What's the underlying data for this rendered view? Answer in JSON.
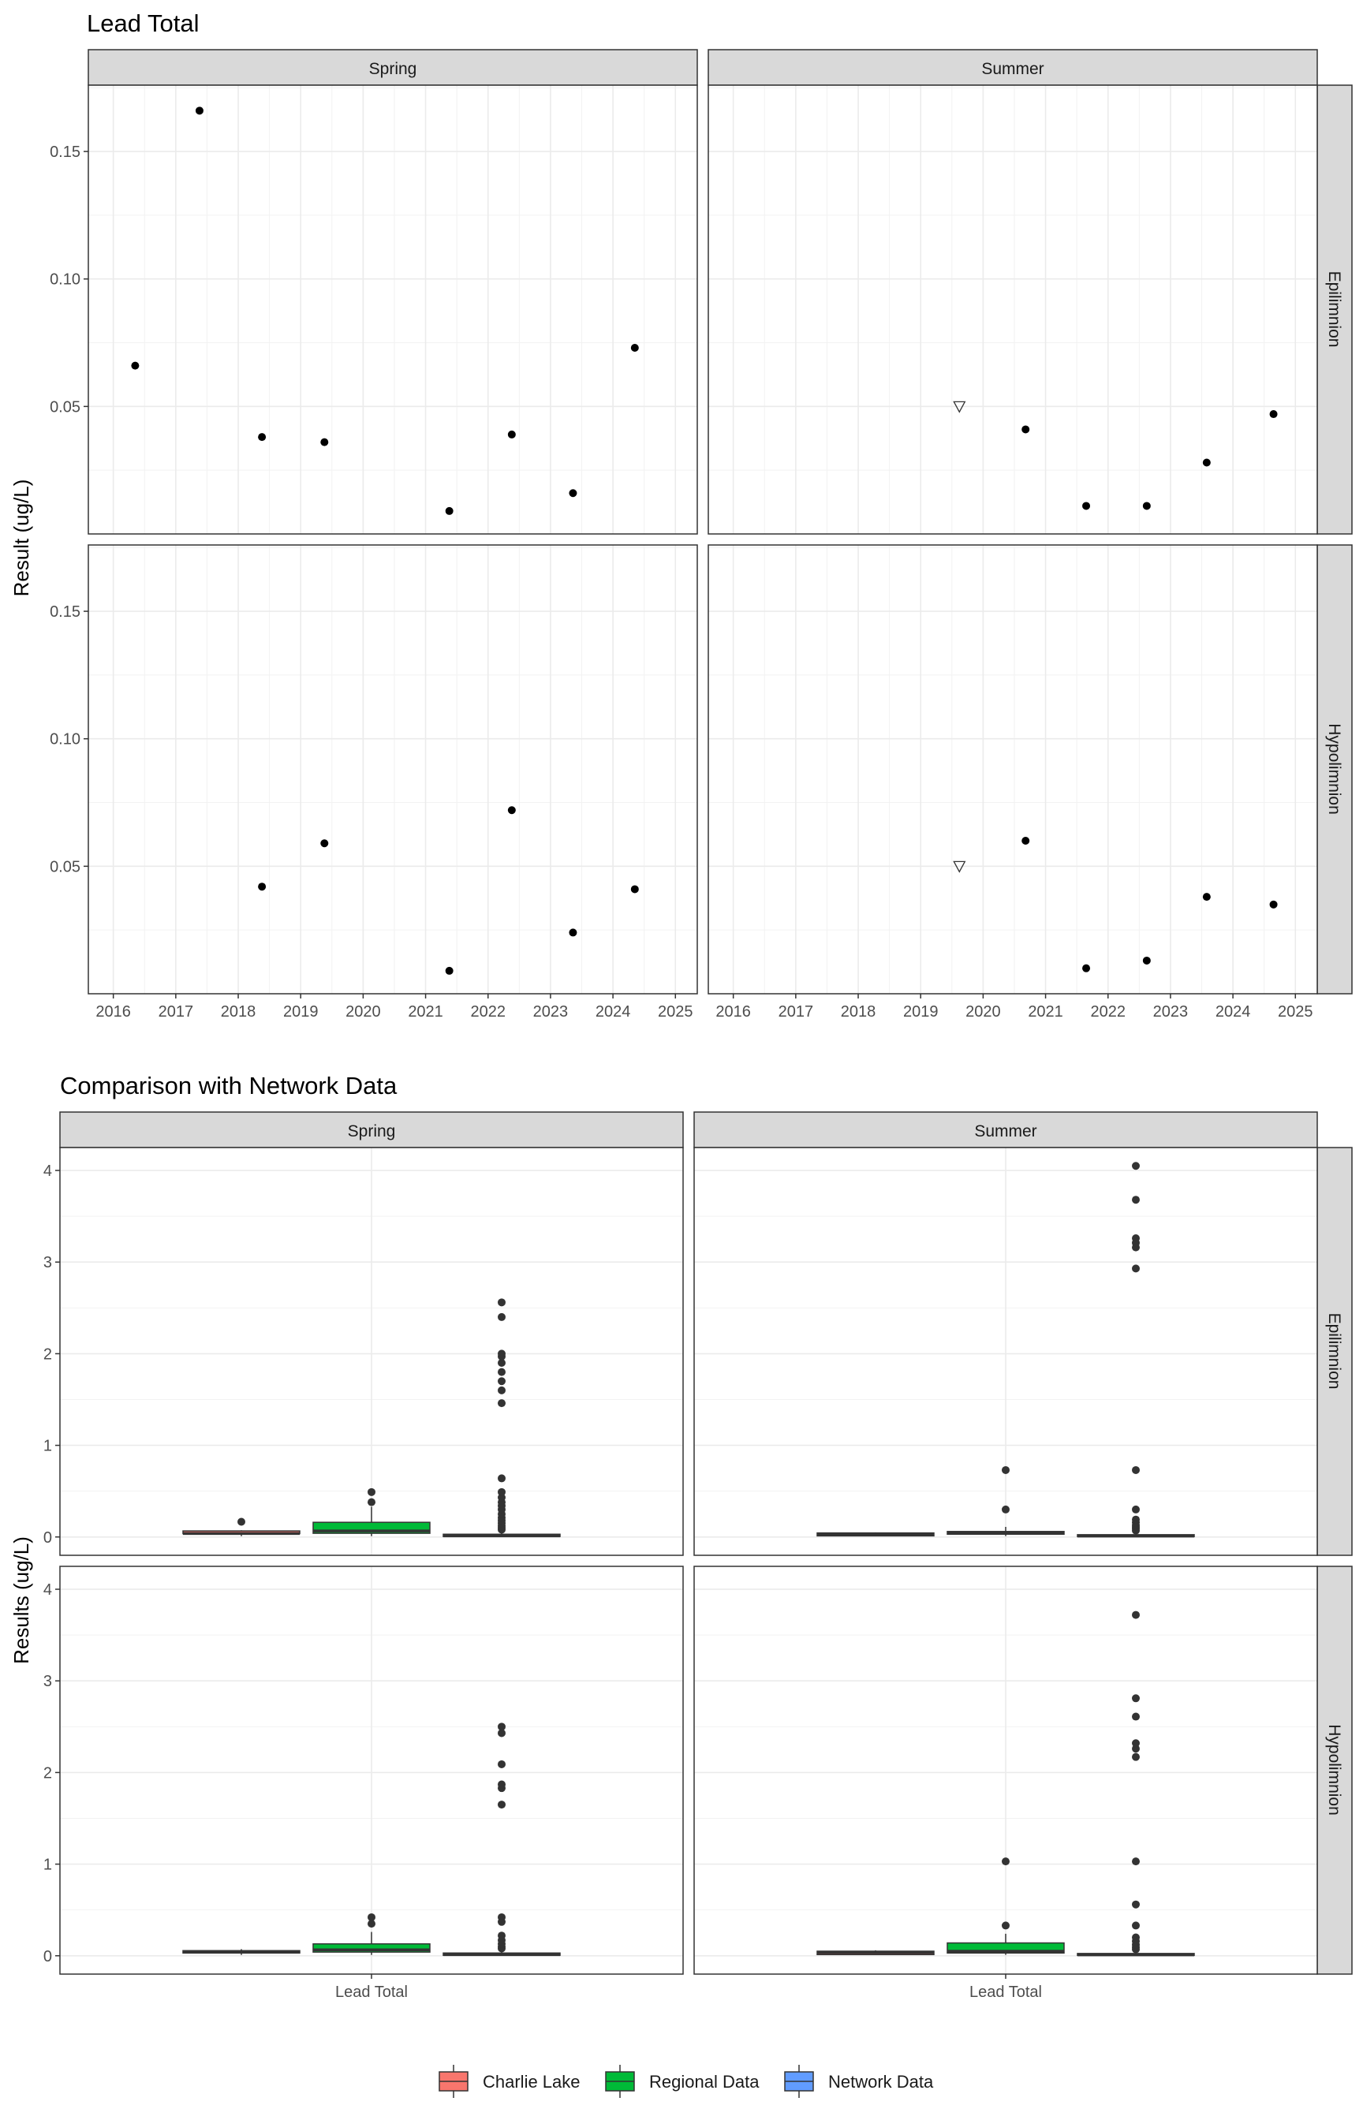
{
  "chart_data": [
    {
      "type": "scatter",
      "title": "Lead Total",
      "ylabel": "Result (ug/L)",
      "xlim": [
        2015.6,
        2025.35
      ],
      "ylim": [
        0.0,
        0.176
      ],
      "x_ticks": [
        2016,
        2017,
        2018,
        2019,
        2020,
        2021,
        2022,
        2023,
        2024,
        2025
      ],
      "y_ticks": [
        0.05,
        0.1,
        0.15
      ],
      "y_tick_labels": [
        "0.05",
        "0.10",
        "0.15"
      ],
      "columns": [
        "Spring",
        "Summer"
      ],
      "rows": [
        "Epilimnion",
        "Hypolimnion"
      ],
      "panels": [
        {
          "season": "Spring",
          "layer": "Epilimnion",
          "points": [
            {
              "x": 2016.35,
              "y": 0.066,
              "censored": false
            },
            {
              "x": 2017.38,
              "y": 0.166,
              "censored": false
            },
            {
              "x": 2018.38,
              "y": 0.038,
              "censored": false
            },
            {
              "x": 2019.38,
              "y": 0.036,
              "censored": false
            },
            {
              "x": 2021.38,
              "y": 0.009,
              "censored": false
            },
            {
              "x": 2022.38,
              "y": 0.039,
              "censored": false
            },
            {
              "x": 2023.36,
              "y": 0.016,
              "censored": false
            },
            {
              "x": 2024.35,
              "y": 0.073,
              "censored": false
            }
          ]
        },
        {
          "season": "Summer",
          "layer": "Epilimnion",
          "points": [
            {
              "x": 2019.62,
              "y": 0.05,
              "censored": true
            },
            {
              "x": 2020.68,
              "y": 0.041,
              "censored": false
            },
            {
              "x": 2021.65,
              "y": 0.011,
              "censored": false
            },
            {
              "x": 2022.62,
              "y": 0.011,
              "censored": false
            },
            {
              "x": 2023.58,
              "y": 0.028,
              "censored": false
            },
            {
              "x": 2024.65,
              "y": 0.047,
              "censored": false
            }
          ]
        },
        {
          "season": "Spring",
          "layer": "Hypolimnion",
          "points": [
            {
              "x": 2018.38,
              "y": 0.042,
              "censored": false
            },
            {
              "x": 2019.38,
              "y": 0.059,
              "censored": false
            },
            {
              "x": 2021.38,
              "y": 0.009,
              "censored": false
            },
            {
              "x": 2022.38,
              "y": 0.072,
              "censored": false
            },
            {
              "x": 2023.36,
              "y": 0.024,
              "censored": false
            },
            {
              "x": 2024.35,
              "y": 0.041,
              "censored": false
            }
          ]
        },
        {
          "season": "Summer",
          "layer": "Hypolimnion",
          "points": [
            {
              "x": 2019.62,
              "y": 0.05,
              "censored": true
            },
            {
              "x": 2020.68,
              "y": 0.06,
              "censored": false
            },
            {
              "x": 2021.65,
              "y": 0.01,
              "censored": false
            },
            {
              "x": 2022.62,
              "y": 0.013,
              "censored": false
            },
            {
              "x": 2023.58,
              "y": 0.038,
              "censored": false
            },
            {
              "x": 2024.65,
              "y": 0.035,
              "censored": false
            }
          ]
        }
      ]
    },
    {
      "type": "box",
      "title": "Comparison with Network Data",
      "ylabel": "Results (ug/L)",
      "xlabel_category": "Lead Total",
      "ylim": [
        -0.2,
        4.25
      ],
      "y_ticks": [
        0,
        1,
        2,
        3,
        4
      ],
      "y_tick_labels": [
        "0",
        "1",
        "2",
        "3",
        "4"
      ],
      "columns": [
        "Spring",
        "Summer"
      ],
      "rows": [
        "Epilimnion",
        "Hypolimnion"
      ],
      "legend": {
        "position": "bottom",
        "entries": [
          {
            "name": "Charlie Lake",
            "color": "#F8766D"
          },
          {
            "name": "Regional Data",
            "color": "#00BA38"
          },
          {
            "name": "Network Data",
            "color": "#619CFF"
          }
        ]
      },
      "panels": [
        {
          "season": "Spring",
          "layer": "Epilimnion",
          "groups": [
            {
              "name": "Charlie Lake",
              "q1": 0.036,
              "median": 0.038,
              "q3": 0.066,
              "whisker_low": 0.009,
              "whisker_high": 0.073,
              "outliers": [
                0.166
              ]
            },
            {
              "name": "Regional Data",
              "q1": 0.04,
              "median": 0.066,
              "q3": 0.16,
              "whisker_low": 0.009,
              "whisker_high": 0.33,
              "outliers": [
                0.38,
                0.49
              ]
            },
            {
              "name": "Network Data",
              "q1": 0.005,
              "median": 0.012,
              "q3": 0.03,
              "whisker_low": 0.0,
              "whisker_high": 0.06,
              "outliers": [
                0.08,
                0.1,
                0.12,
                0.15,
                0.18,
                0.21,
                0.25,
                0.3,
                0.34,
                0.38,
                0.43,
                0.49,
                0.64,
                1.46,
                1.6,
                1.7,
                1.8,
                1.9,
                1.97,
                2.0,
                2.4,
                2.56
              ]
            }
          ]
        },
        {
          "season": "Summer",
          "layer": "Epilimnion",
          "groups": [
            {
              "name": "Charlie Lake",
              "q1": 0.012,
              "median": 0.028,
              "q3": 0.044,
              "whisker_low": 0.011,
              "whisker_high": 0.05,
              "outliers": []
            },
            {
              "name": "Regional Data",
              "q1": 0.03,
              "median": 0.04,
              "q3": 0.06,
              "whisker_low": 0.01,
              "whisker_high": 0.11,
              "outliers": [
                0.3,
                0.73
              ]
            },
            {
              "name": "Network Data",
              "q1": 0.004,
              "median": 0.01,
              "q3": 0.025,
              "whisker_low": 0.0,
              "whisker_high": 0.05,
              "outliers": [
                0.07,
                0.09,
                0.11,
                0.13,
                0.16,
                0.19,
                0.3,
                0.73,
                2.93,
                3.16,
                3.21,
                3.26,
                3.68,
                4.05
              ]
            }
          ]
        },
        {
          "season": "Spring",
          "layer": "Hypolimnion",
          "groups": [
            {
              "name": "Charlie Lake",
              "q1": 0.03,
              "median": 0.041,
              "q3": 0.056,
              "whisker_low": 0.009,
              "whisker_high": 0.072,
              "outliers": []
            },
            {
              "name": "Regional Data",
              "q1": 0.04,
              "median": 0.065,
              "q3": 0.13,
              "whisker_low": 0.009,
              "whisker_high": 0.26,
              "outliers": [
                0.35,
                0.42
              ]
            },
            {
              "name": "Network Data",
              "q1": 0.005,
              "median": 0.012,
              "q3": 0.03,
              "whisker_low": 0.0,
              "whisker_high": 0.06,
              "outliers": [
                0.08,
                0.1,
                0.13,
                0.17,
                0.22,
                0.37,
                0.42,
                1.65,
                1.83,
                1.87,
                2.09,
                2.43,
                2.5
              ]
            }
          ]
        },
        {
          "season": "Summer",
          "layer": "Hypolimnion",
          "groups": [
            {
              "name": "Charlie Lake",
              "q1": 0.013,
              "median": 0.036,
              "q3": 0.05,
              "whisker_low": 0.01,
              "whisker_high": 0.06,
              "outliers": []
            },
            {
              "name": "Regional Data",
              "q1": 0.03,
              "median": 0.05,
              "q3": 0.14,
              "whisker_low": 0.01,
              "whisker_high": 0.24,
              "outliers": [
                0.33,
                1.03
              ]
            },
            {
              "name": "Network Data",
              "q1": 0.004,
              "median": 0.01,
              "q3": 0.025,
              "whisker_low": 0.0,
              "whisker_high": 0.05,
              "outliers": [
                0.07,
                0.09,
                0.12,
                0.16,
                0.2,
                0.33,
                0.56,
                1.03,
                2.17,
                2.26,
                2.32,
                2.61,
                2.81,
                3.72
              ]
            }
          ]
        }
      ]
    }
  ]
}
